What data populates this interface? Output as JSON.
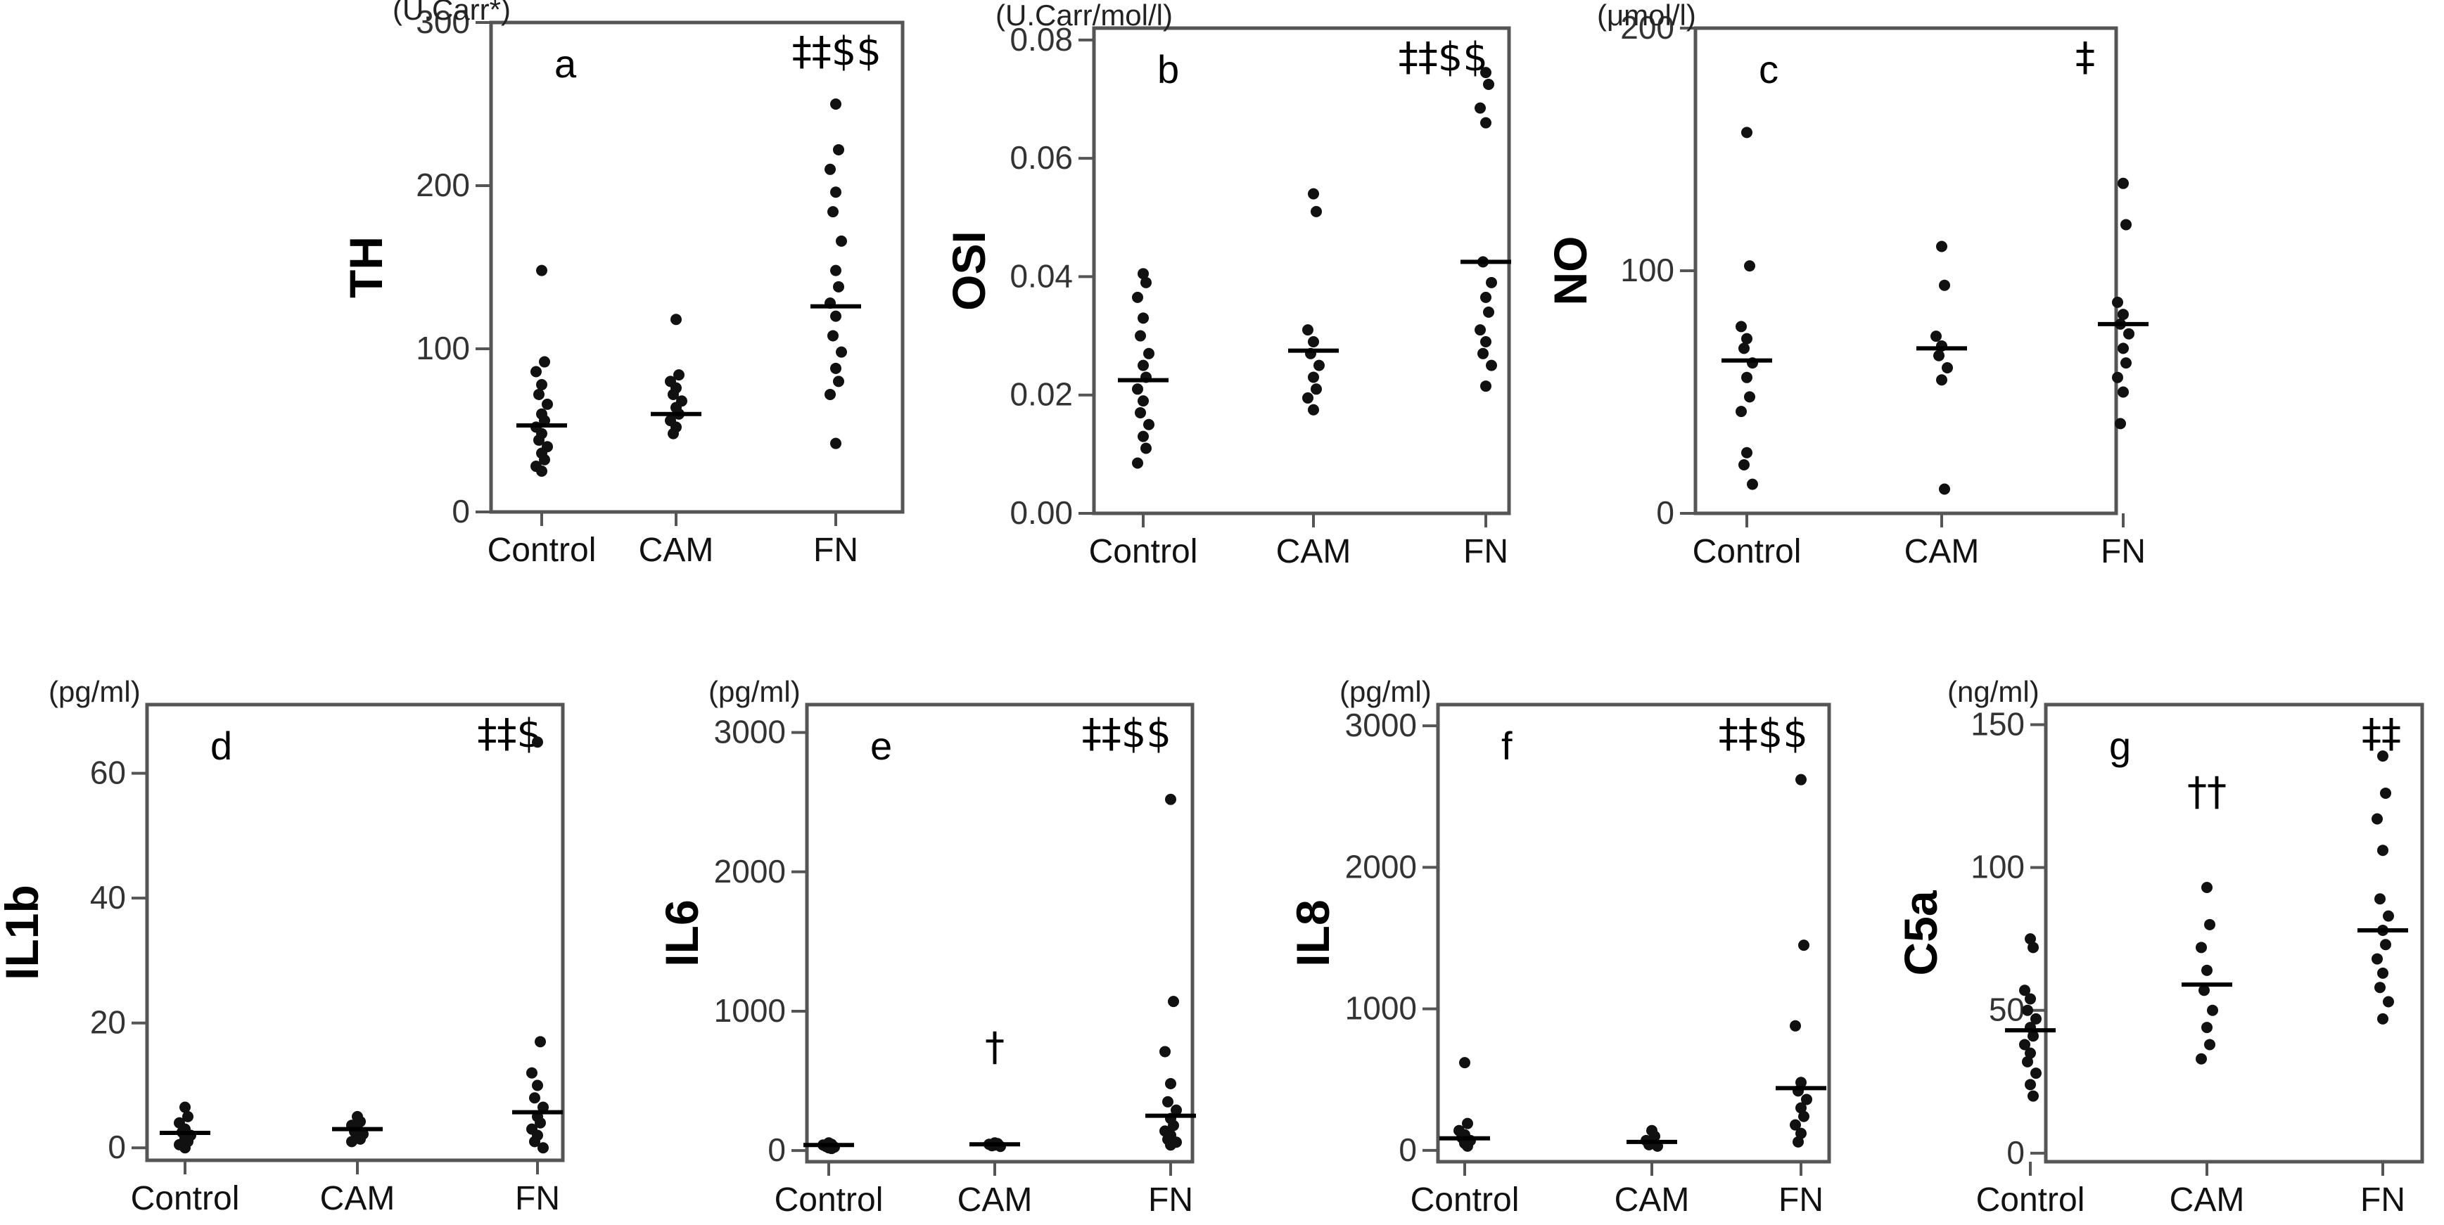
{
  "chart_data": [
    {
      "type": "scatter",
      "panel": "a",
      "unit": "(U.Carr*)",
      "ylabel": "TH",
      "categories": [
        "Control",
        "CAM",
        "FN"
      ],
      "yticks": [
        "0",
        "100",
        "200",
        "300"
      ],
      "ylim": [
        0,
        300
      ],
      "significance": "‡‡$$",
      "series": [
        {
          "category": "Control",
          "values": [
            148,
            92,
            86,
            78,
            72,
            66,
            60,
            56,
            52,
            48,
            44,
            40,
            36,
            32,
            28,
            25
          ],
          "median": 53
        },
        {
          "category": "CAM",
          "values": [
            118,
            84,
            80,
            76,
            72,
            68,
            64,
            60,
            56,
            52,
            48
          ],
          "median": 60
        },
        {
          "category": "FN",
          "values": [
            250,
            222,
            210,
            196,
            184,
            166,
            148,
            138,
            128,
            120,
            108,
            98,
            88,
            80,
            72,
            42
          ],
          "median": 126
        }
      ]
    },
    {
      "type": "scatter",
      "panel": "b",
      "unit": "(U.Carr/mol/l)",
      "ylabel": "OSI",
      "categories": [
        "Control",
        "CAM",
        "FN"
      ],
      "yticks": [
        "0.00",
        "0.02",
        "0.04",
        "0.06",
        "0.08"
      ],
      "ylim": [
        0,
        0.082
      ],
      "significance": "‡‡$$",
      "series": [
        {
          "category": "Control",
          "values": [
            0.0405,
            0.039,
            0.0365,
            0.033,
            0.03,
            0.027,
            0.025,
            0.023,
            0.021,
            0.019,
            0.017,
            0.015,
            0.013,
            0.011,
            0.0085
          ],
          "median": 0.0225
        },
        {
          "category": "CAM",
          "values": [
            0.054,
            0.051,
            0.031,
            0.029,
            0.027,
            0.025,
            0.023,
            0.021,
            0.0195,
            0.0175
          ],
          "median": 0.0275
        },
        {
          "category": "FN",
          "values": [
            0.0745,
            0.0725,
            0.0685,
            0.066,
            0.0425,
            0.039,
            0.0365,
            0.034,
            0.031,
            0.029,
            0.027,
            0.025,
            0.0215
          ],
          "median": 0.0425
        }
      ]
    },
    {
      "type": "scatter",
      "panel": "c",
      "unit": "(μmol/l)",
      "ylabel": "NO",
      "categories": [
        "Control",
        "CAM",
        "FN"
      ],
      "yticks": [
        "0",
        "100",
        "200"
      ],
      "ylim": [
        0,
        200
      ],
      "significance": "‡",
      "series": [
        {
          "category": "Control",
          "values": [
            157,
            102,
            77,
            72,
            68,
            62,
            56,
            48,
            42,
            25,
            20,
            12
          ],
          "median": 63
        },
        {
          "category": "CAM",
          "values": [
            110,
            94,
            73,
            69,
            65,
            60,
            55,
            10
          ],
          "median": 68
        },
        {
          "category": "FN",
          "values": [
            136,
            119,
            87,
            82,
            78,
            74,
            68,
            62,
            56,
            50,
            37
          ],
          "median": 78
        }
      ]
    },
    {
      "type": "scatter",
      "panel": "d",
      "unit": "(pg/ml)",
      "ylabel": "IL1b",
      "categories": [
        "Control",
        "CAM",
        "FN"
      ],
      "yticks": [
        "0",
        "20",
        "40",
        "60"
      ],
      "ylim": [
        -2,
        71
      ],
      "significance": "‡‡$",
      "series": [
        {
          "category": "Control",
          "values": [
            6.5,
            5,
            4,
            3,
            2.5,
            2,
            1.5,
            1,
            0.5,
            0
          ],
          "median": 2.4
        },
        {
          "category": "CAM",
          "values": [
            5,
            4.2,
            3.6,
            3,
            2.6,
            2.2,
            1.8,
            1.4,
            1
          ],
          "median": 3
        },
        {
          "category": "FN",
          "values": [
            65,
            17,
            12,
            10,
            8,
            6.5,
            5,
            4,
            3,
            2,
            1,
            0
          ],
          "median": 5.7
        }
      ]
    },
    {
      "type": "scatter",
      "panel": "e",
      "unit": "(pg/ml)",
      "ylabel": "IL6",
      "categories": [
        "Control",
        "CAM",
        "FN"
      ],
      "yticks": [
        "0",
        "1000",
        "2000",
        "3000"
      ],
      "ylim": [
        -80,
        3200
      ],
      "significance": "‡‡$$",
      "series": [
        {
          "category": "Control",
          "values": [
            55,
            45,
            40,
            35,
            30,
            25,
            20,
            15
          ],
          "median": 40
        },
        {
          "category": "CAM",
          "values": [
            55,
            50,
            45,
            40,
            35,
            30
          ],
          "median": 45
        },
        {
          "category": "FN",
          "values": [
            2520,
            1070,
            710,
            480,
            350,
            290,
            230,
            180,
            140,
            110,
            80,
            60,
            40
          ],
          "median": 250
        }
      ],
      "annotations": [
        {
          "category": "CAM",
          "text": "†"
        }
      ]
    },
    {
      "type": "scatter",
      "panel": "f",
      "unit": "(pg/ml)",
      "ylabel": "IL8",
      "categories": [
        "Control",
        "CAM",
        "FN"
      ],
      "yticks": [
        "0",
        "1000",
        "2000",
        "3000"
      ],
      "ylim": [
        -80,
        3150
      ],
      "significance": "‡‡$$",
      "series": [
        {
          "category": "Control",
          "values": [
            620,
            190,
            140,
            110,
            90,
            70,
            50,
            30
          ],
          "median": 85
        },
        {
          "category": "CAM",
          "values": [
            140,
            100,
            70,
            50,
            40,
            30
          ],
          "median": 60
        },
        {
          "category": "FN",
          "values": [
            2620,
            1450,
            880,
            480,
            420,
            360,
            300,
            240,
            180,
            120,
            60
          ],
          "median": 440
        }
      ]
    },
    {
      "type": "scatter",
      "panel": "g",
      "unit": "(ng/ml)",
      "ylabel": "C5a",
      "categories": [
        "Control",
        "CAM",
        "FN"
      ],
      "yticks": [
        "0",
        "50",
        "100",
        "150"
      ],
      "ylim": [
        -3,
        157
      ],
      "significance": "‡‡",
      "series": [
        {
          "category": "Control",
          "values": [
            75,
            72,
            57,
            54,
            50,
            47,
            44,
            41,
            38,
            35,
            32,
            28,
            24,
            20
          ],
          "median": 43
        },
        {
          "category": "CAM",
          "values": [
            93,
            80,
            72,
            64,
            57,
            50,
            44,
            38,
            33
          ],
          "median": 59
        },
        {
          "category": "FN",
          "values": [
            139,
            126,
            117,
            106,
            89,
            83,
            78,
            73,
            68,
            63,
            58,
            53,
            47
          ],
          "median": 78
        }
      ],
      "annotations": [
        {
          "category": "CAM",
          "text": "††"
        }
      ]
    }
  ]
}
